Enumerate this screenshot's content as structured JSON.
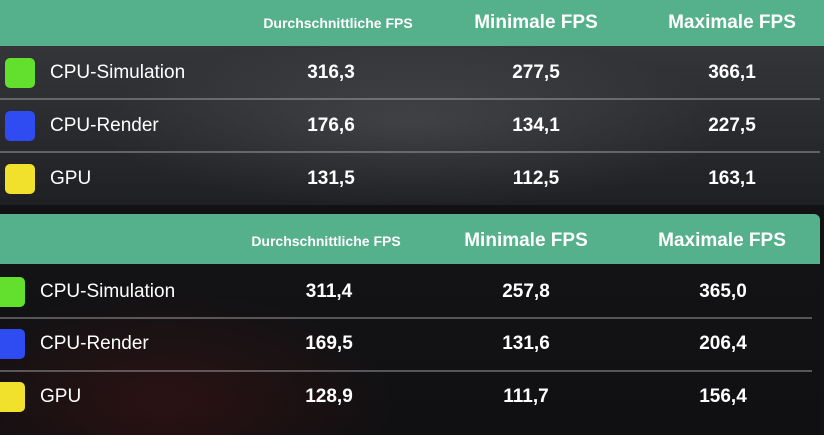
{
  "colors": {
    "header_bg": "#55b08c",
    "cpu_simulation": "#63e02e",
    "cpu_render": "#2f4cf2",
    "gpu": "#f2e12c"
  },
  "tables": [
    {
      "headers": {
        "avg": "Durchschnittliche FPS",
        "min": "Minimale FPS",
        "max": "Maximale FPS"
      },
      "rows": [
        {
          "label": "CPU-Simulation",
          "avg": "316,3",
          "min": "277,5",
          "max": "366,1"
        },
        {
          "label": "CPU-Render",
          "avg": "176,6",
          "min": "134,1",
          "max": "227,5"
        },
        {
          "label": "GPU",
          "avg": "131,5",
          "min": "112,5",
          "max": "163,1"
        }
      ]
    },
    {
      "headers": {
        "avg": "Durchschnittliche FPS",
        "min": "Minimale FPS",
        "max": "Maximale FPS"
      },
      "rows": [
        {
          "label": "CPU-Simulation",
          "avg": "311,4",
          "min": "257,8",
          "max": "365,0"
        },
        {
          "label": "CPU-Render",
          "avg": "169,5",
          "min": "131,6",
          "max": "206,4"
        },
        {
          "label": "GPU",
          "avg": "128,9",
          "min": "111,7",
          "max": "156,4"
        }
      ]
    }
  ]
}
